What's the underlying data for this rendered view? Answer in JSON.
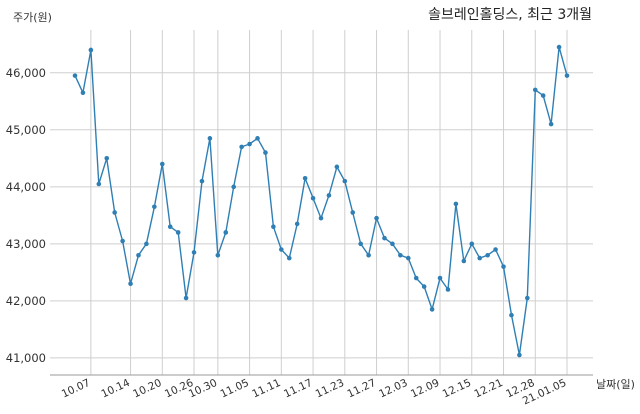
{
  "chart_data": {
    "type": "line",
    "title": "솔브레인홀딩스, 최근 3개월",
    "ylabel": "주가(원)",
    "xlabel": "날짜(일)",
    "ylim": [
      40700,
      46750
    ],
    "y_ticks": [
      41000,
      42000,
      43000,
      44000,
      45000,
      46000
    ],
    "y_tick_labels": [
      "41,000",
      "42,000",
      "43,000",
      "44,000",
      "45,000",
      "46,000"
    ],
    "x_tick_labels": [
      "10.07",
      "10.14",
      "10.20",
      "10.26",
      "10.30",
      "11.05",
      "11.11",
      "11.17",
      "11.23",
      "11.27",
      "12.03",
      "12.09",
      "12.15",
      "12.21",
      "12.28",
      "21.01.05"
    ],
    "x_tick_index": [
      2,
      7,
      11,
      15,
      18,
      22,
      26,
      30,
      34,
      38,
      42,
      46,
      50,
      54,
      58,
      62
    ],
    "grid": true,
    "line_color": "#2f7fb5",
    "series": [
      {
        "values": [
          45950,
          45650,
          46400,
          44050,
          44500,
          43550,
          43050,
          42300,
          42800,
          43000,
          43650,
          44400,
          43300,
          43200,
          42050,
          42850,
          44100,
          44850,
          42800,
          43200,
          44000,
          44700,
          44750,
          44850,
          44600,
          43300,
          42900,
          42750,
          43350,
          44150,
          43800,
          43450,
          43850,
          44350,
          44100,
          43550,
          43000,
          42800,
          43450,
          43100,
          43000,
          42800,
          42750,
          42400,
          42250,
          41850,
          42400,
          42200,
          43700,
          42700,
          43000,
          42750,
          42800,
          42900,
          42600,
          41750,
          41050,
          42050,
          45700,
          45600,
          45100,
          46450,
          45950
        ]
      }
    ]
  }
}
